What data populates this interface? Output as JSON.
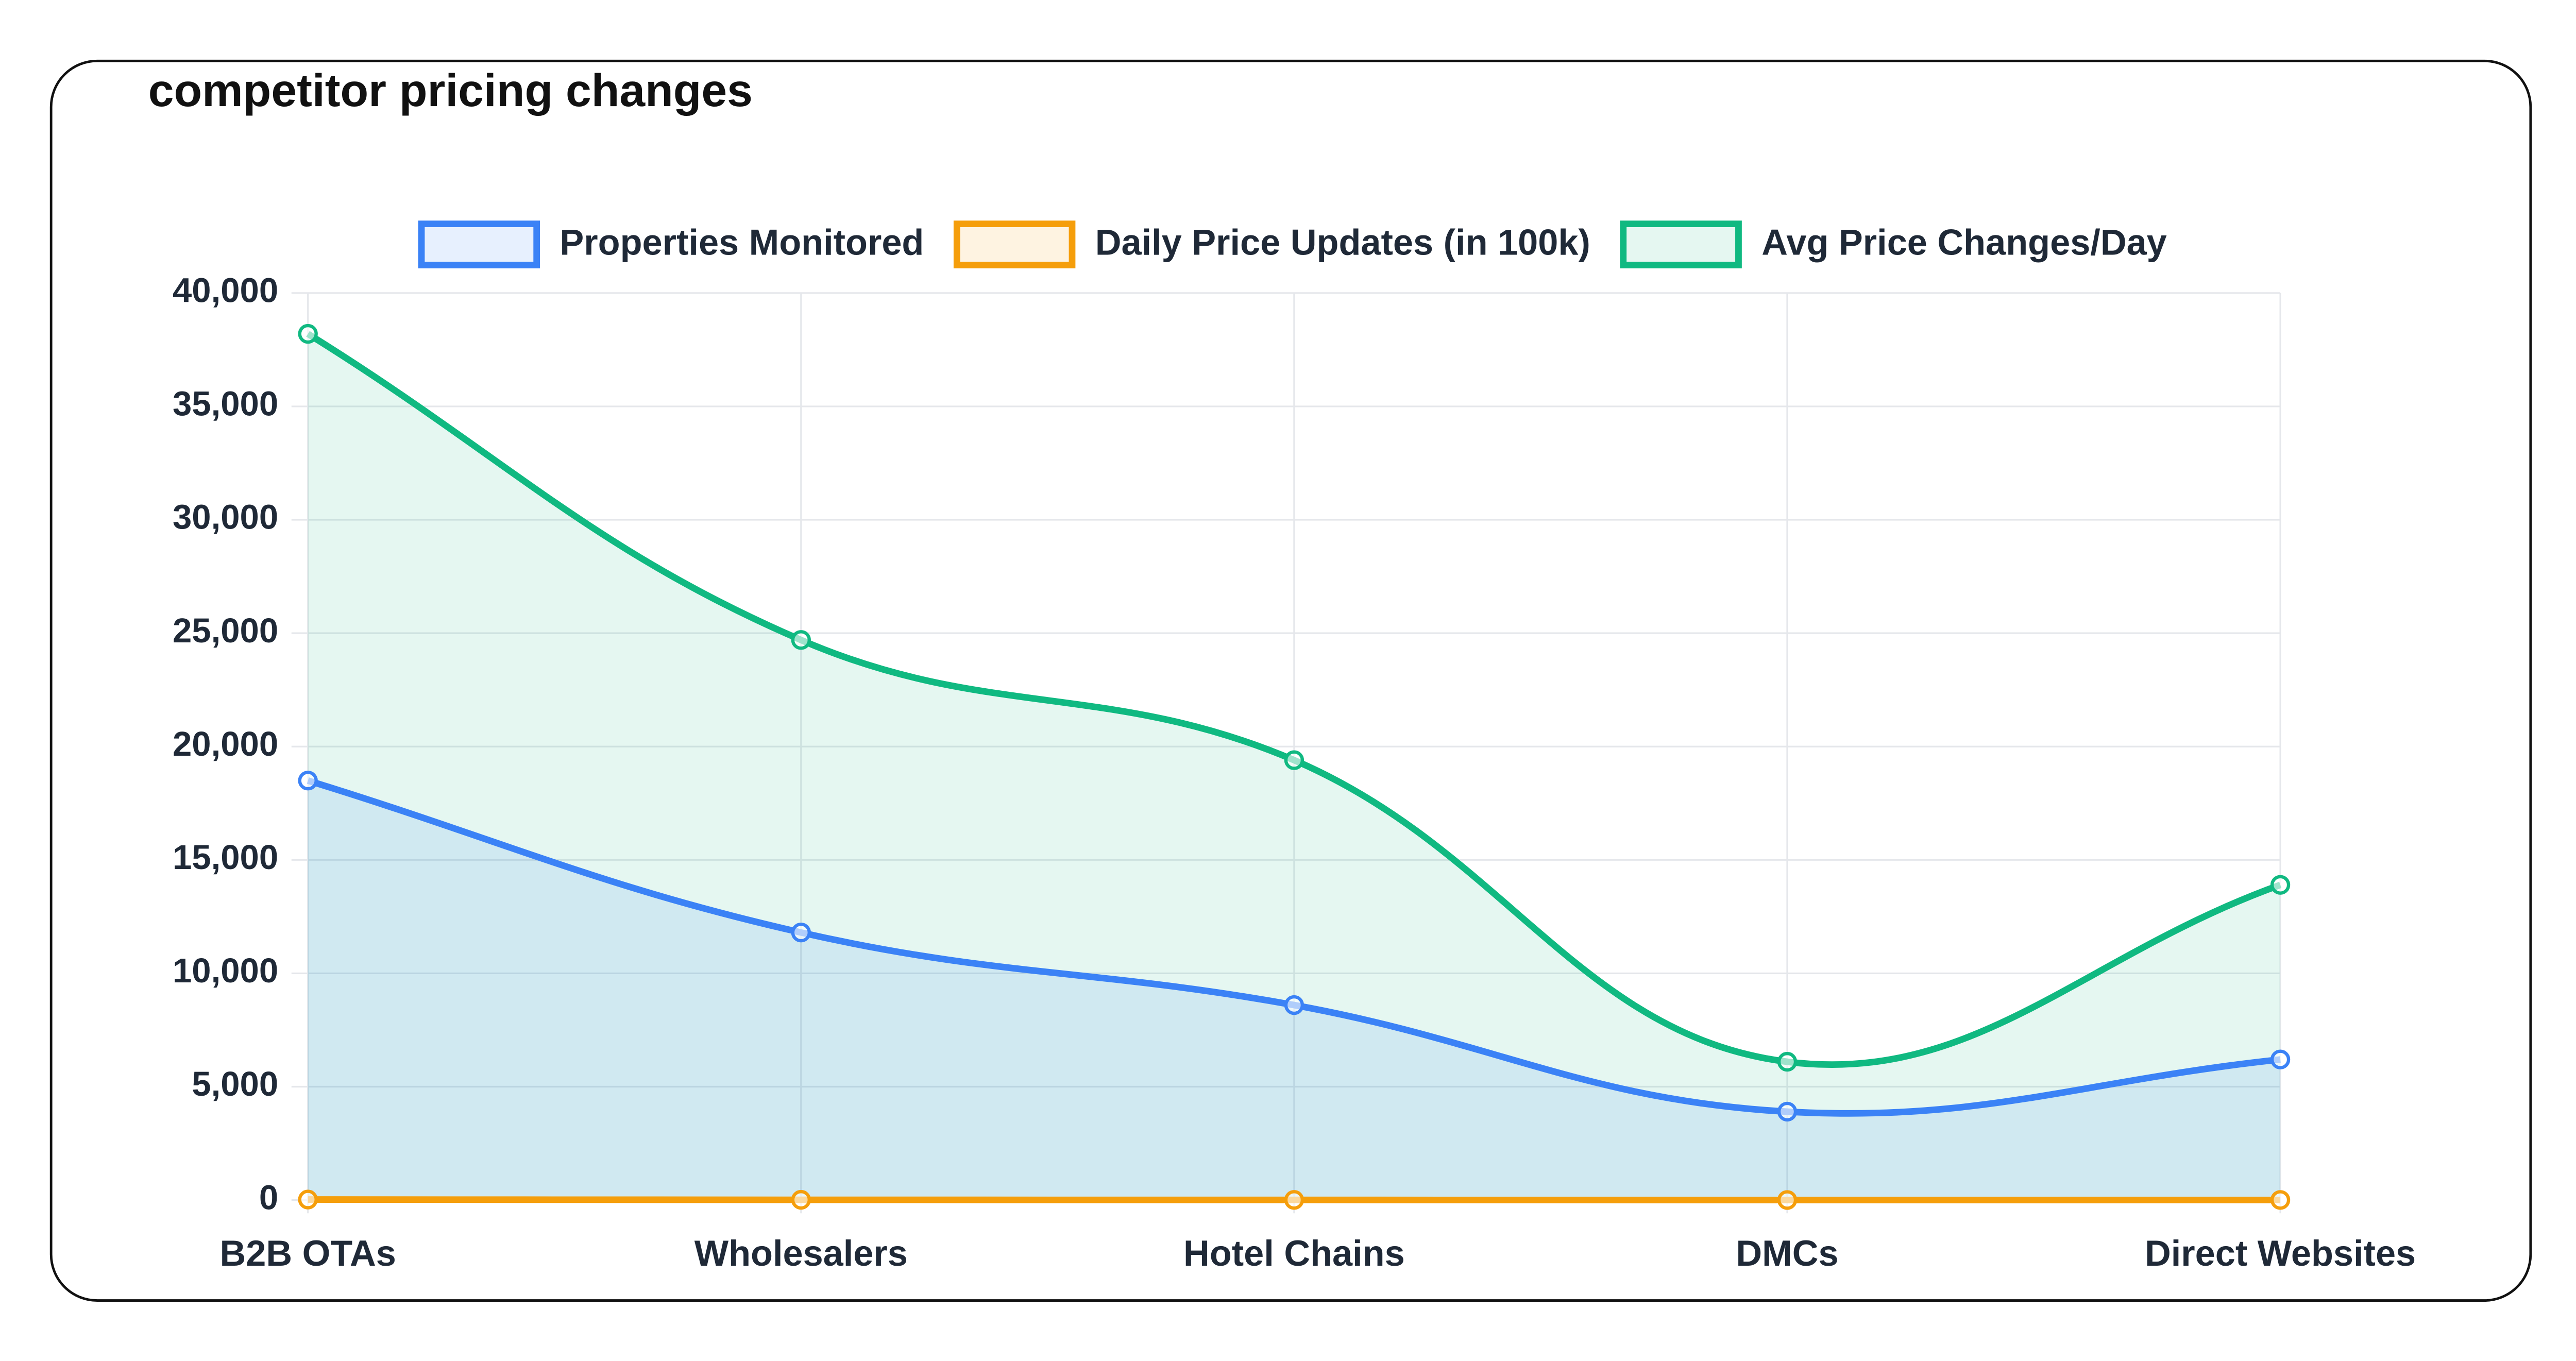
{
  "chart_data": {
    "type": "line",
    "title": "competitor pricing changes",
    "categories": [
      "B2B OTAs",
      "Wholesalers",
      "Hotel Chains",
      "DMCs",
      "Direct Websites"
    ],
    "series": [
      {
        "name": "Properties Monitored",
        "color": "#3b82f6",
        "fill": "rgba(59,130,246,0.12)",
        "values": [
          18500,
          11800,
          8600,
          3900,
          6200
        ]
      },
      {
        "name": "Daily Price Updates (in 100k)",
        "color": "#f59e0b",
        "fill": "rgba(245,158,11,0.12)",
        "values": [
          25,
          12,
          8,
          3,
          6
        ]
      },
      {
        "name": "Avg Price Changes/Day",
        "color": "#10b981",
        "fill": "rgba(16,185,129,0.11)",
        "values": [
          38200,
          24700,
          19400,
          6100,
          13900
        ]
      }
    ],
    "ylim": [
      0,
      40000
    ],
    "yticks": [
      0,
      {
        "value": 5000,
        "label": "5,000"
      },
      {
        "value": 10000,
        "label": "10,000"
      },
      {
        "value": 15000,
        "label": "15,000"
      },
      {
        "value": 20000,
        "label": "20,000"
      },
      {
        "value": 25000,
        "label": "25,000"
      },
      {
        "value": 30000,
        "label": "30,000"
      },
      {
        "value": 35000,
        "label": "35,000"
      },
      {
        "value": 40000,
        "label": "40,000"
      }
    ],
    "grid": true,
    "legend": "top"
  }
}
